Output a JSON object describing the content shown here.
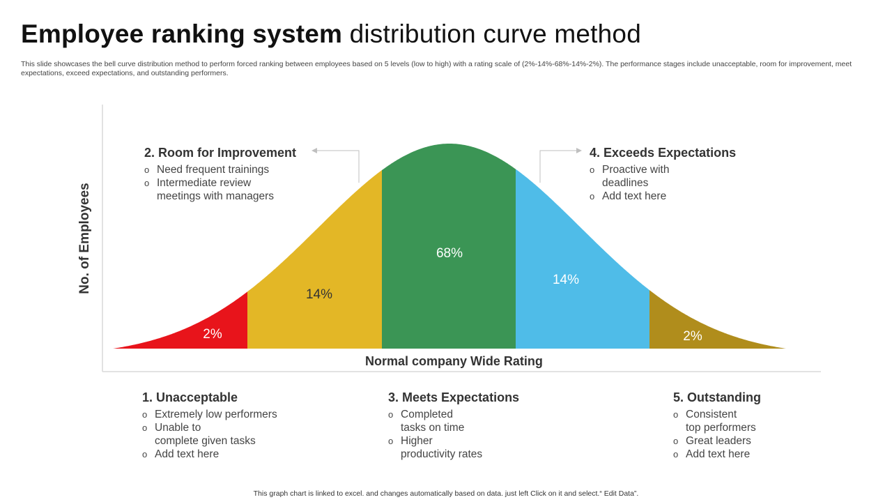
{
  "title": {
    "bold": "Employee ranking system",
    "rest": " distribution curve method"
  },
  "subtitle": "This slide showcases the bell curve distribution method to perform forced ranking between employees based on 5 levels (low to high) with a rating scale of (2%-14%-68%-14%-2%). The performance stages include unacceptable, room for improvement, meet expectations, exceed expectations, and outstanding performers.",
  "chart_data": {
    "type": "area",
    "xlabel": "Normal company Wide Rating",
    "ylabel": "No. of Employees",
    "segments": [
      {
        "label": "2%",
        "value": 2,
        "color": "#e8141b"
      },
      {
        "label": "14%",
        "value": 14,
        "color": "#e3b726"
      },
      {
        "label": "68%",
        "value": 68,
        "color": "#3b9555"
      },
      {
        "label": "14%",
        "value": 14,
        "color": "#4fbce8"
      },
      {
        "label": "2%",
        "value": 2,
        "color": "#b08d1c"
      }
    ]
  },
  "levels": [
    {
      "title": "1. Unacceptable",
      "items": [
        "Extremely low performers",
        "Unable to\ncomplete given tasks",
        "Add text here"
      ]
    },
    {
      "title": "2. Room for Improvement",
      "items": [
        "Need frequent trainings",
        "Intermediate review\nmeetings with managers"
      ]
    },
    {
      "title": "3. Meets Expectations",
      "items": [
        "Completed\ntasks on time",
        "Higher\nproductivity rates"
      ]
    },
    {
      "title": "4. Exceeds Expectations",
      "items": [
        "Proactive with\ndeadlines",
        "Add text here"
      ]
    },
    {
      "title": "5. Outstanding",
      "items": [
        "Consistent\ntop performers",
        "Great leaders",
        "Add text here"
      ]
    }
  ],
  "footer": "This graph chart is linked to excel.  and changes automatically based on data. just left Click on it and select.“ Edit Data”."
}
